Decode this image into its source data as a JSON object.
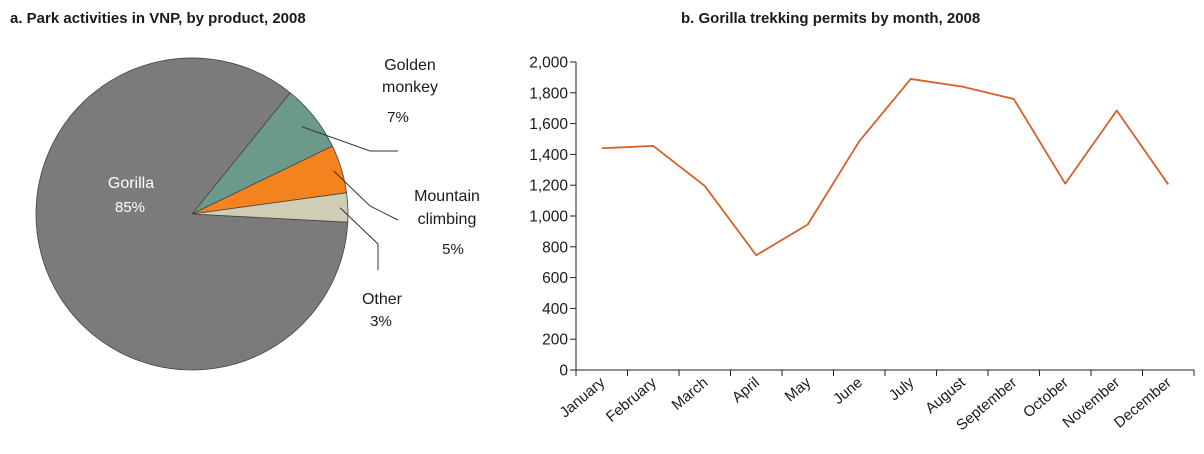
{
  "chart_data": [
    {
      "type": "pie",
      "title": "a. Park activities in VNP, by product, 2008",
      "slices": [
        {
          "label": "Gorilla",
          "value": 85,
          "pct_label": "85%",
          "color": "#7a7b7a"
        },
        {
          "label": "Golden monkey",
          "value": 7,
          "pct_label": "7%",
          "color": "#6b9a8a",
          "label_lines": [
            "Golden",
            "monkey"
          ]
        },
        {
          "label": "Mountain climbing",
          "value": 5,
          "pct_label": "5%",
          "color": "#f4821f",
          "label_lines": [
            "Mountain",
            "climbing"
          ]
        },
        {
          "label": "Other",
          "value": 3,
          "pct_label": "3%",
          "color": "#cfcdb3",
          "label_lines": [
            "Other"
          ]
        }
      ]
    },
    {
      "type": "line",
      "title": "b. Gorilla trekking permits by month, 2008",
      "x": [
        "January",
        "February",
        "March",
        "April",
        "May",
        "June",
        "July",
        "August",
        "September",
        "October",
        "November",
        "December"
      ],
      "series": [
        {
          "values": [
            1440,
            1455,
            1195,
            745,
            945,
            1485,
            1890,
            1840,
            1760,
            1210,
            1685,
            1205
          ],
          "color": "#d4622a"
        }
      ],
      "ylim": [
        0,
        2000
      ],
      "yticks": [
        "0",
        "200",
        "400",
        "600",
        "800",
        "1,000",
        "1,200",
        "1,400",
        "1,600",
        "1,800",
        "2,000"
      ],
      "grid": false
    }
  ]
}
